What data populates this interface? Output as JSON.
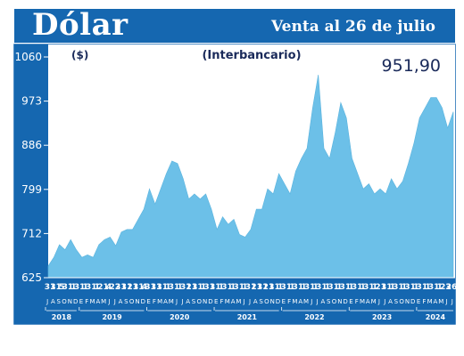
{
  "header": {
    "title": "Dólar",
    "subtitle": "Venta al 26 de julio"
  },
  "colors": {
    "header": "#1567b0",
    "axis_bg": "#1567b0",
    "area_fill": "#6cc0e8",
    "text_dark": "#1a2a5a"
  },
  "chart_data": {
    "type": "area",
    "title": "(Interbancario)",
    "ylabel": "($)",
    "value_label": "951,90",
    "ylim": [
      625,
      1060
    ],
    "yticks": [
      "625",
      "712",
      "799",
      "886",
      "973",
      "1060"
    ],
    "grid": false,
    "years": [
      "2018",
      "2019",
      "2020",
      "2021",
      "2022",
      "2023",
      "2024"
    ],
    "month_labels": "JASONDEFMAMJJASONDEFMAMJJASONDEFMAMJJASONDEFMAMJJASONDEFMAMJJASONDEFMAMJJ",
    "day_labels": [
      "31",
      "31",
      "5",
      "31",
      "1",
      "31",
      "1",
      "31",
      "1",
      "21",
      "4",
      "22",
      "31",
      "31",
      "21",
      "31",
      "4",
      "31",
      "31",
      "31",
      "1",
      "31",
      "1",
      "31",
      "21",
      "31",
      "1",
      "31",
      "31",
      "1",
      "31",
      "1",
      "31",
      "1",
      "31",
      "21",
      "31",
      "21",
      "31",
      "1",
      "31",
      "1",
      "31",
      "1",
      "31",
      "1",
      "31",
      "1",
      "31",
      "1",
      "31",
      "1",
      "31",
      "1",
      "31",
      "1",
      "21",
      "31",
      "1",
      "31",
      "1",
      "31",
      "1",
      "31",
      "1",
      "31",
      "1",
      "23",
      "26"
    ],
    "x": [
      "2018-07",
      "2018-08",
      "2018-09",
      "2018-10",
      "2018-11",
      "2018-12",
      "2019-01",
      "2019-02",
      "2019-03",
      "2019-04",
      "2019-05",
      "2019-06",
      "2019-07",
      "2019-08",
      "2019-09",
      "2019-10",
      "2019-11",
      "2019-12",
      "2020-01",
      "2020-02",
      "2020-03",
      "2020-04",
      "2020-05",
      "2020-06",
      "2020-07",
      "2020-08",
      "2020-09",
      "2020-10",
      "2020-11",
      "2020-12",
      "2021-01",
      "2021-02",
      "2021-03",
      "2021-04",
      "2021-05",
      "2021-06",
      "2021-07",
      "2021-08",
      "2021-09",
      "2021-10",
      "2021-11",
      "2021-12",
      "2022-01",
      "2022-02",
      "2022-03",
      "2022-04",
      "2022-05",
      "2022-06",
      "2022-07",
      "2022-08",
      "2022-09",
      "2022-10",
      "2022-11",
      "2022-12",
      "2023-01",
      "2023-02",
      "2023-03",
      "2023-04",
      "2023-05",
      "2023-06",
      "2023-07",
      "2023-08",
      "2023-09",
      "2023-10",
      "2023-11",
      "2023-12",
      "2024-01",
      "2024-02",
      "2024-03",
      "2024-04",
      "2024-05",
      "2024-06",
      "2024-07"
    ],
    "values": [
      648,
      665,
      690,
      680,
      700,
      680,
      665,
      670,
      665,
      690,
      700,
      705,
      688,
      715,
      720,
      720,
      740,
      760,
      800,
      770,
      800,
      830,
      855,
      850,
      820,
      780,
      790,
      780,
      790,
      760,
      720,
      745,
      730,
      740,
      710,
      705,
      720,
      760,
      760,
      800,
      790,
      830,
      810,
      790,
      835,
      860,
      880,
      960,
      1025,
      880,
      860,
      910,
      970,
      940,
      860,
      830,
      800,
      810,
      790,
      800,
      790,
      820,
      800,
      815,
      850,
      890,
      940,
      960,
      980,
      980,
      960,
      920,
      952
    ]
  }
}
